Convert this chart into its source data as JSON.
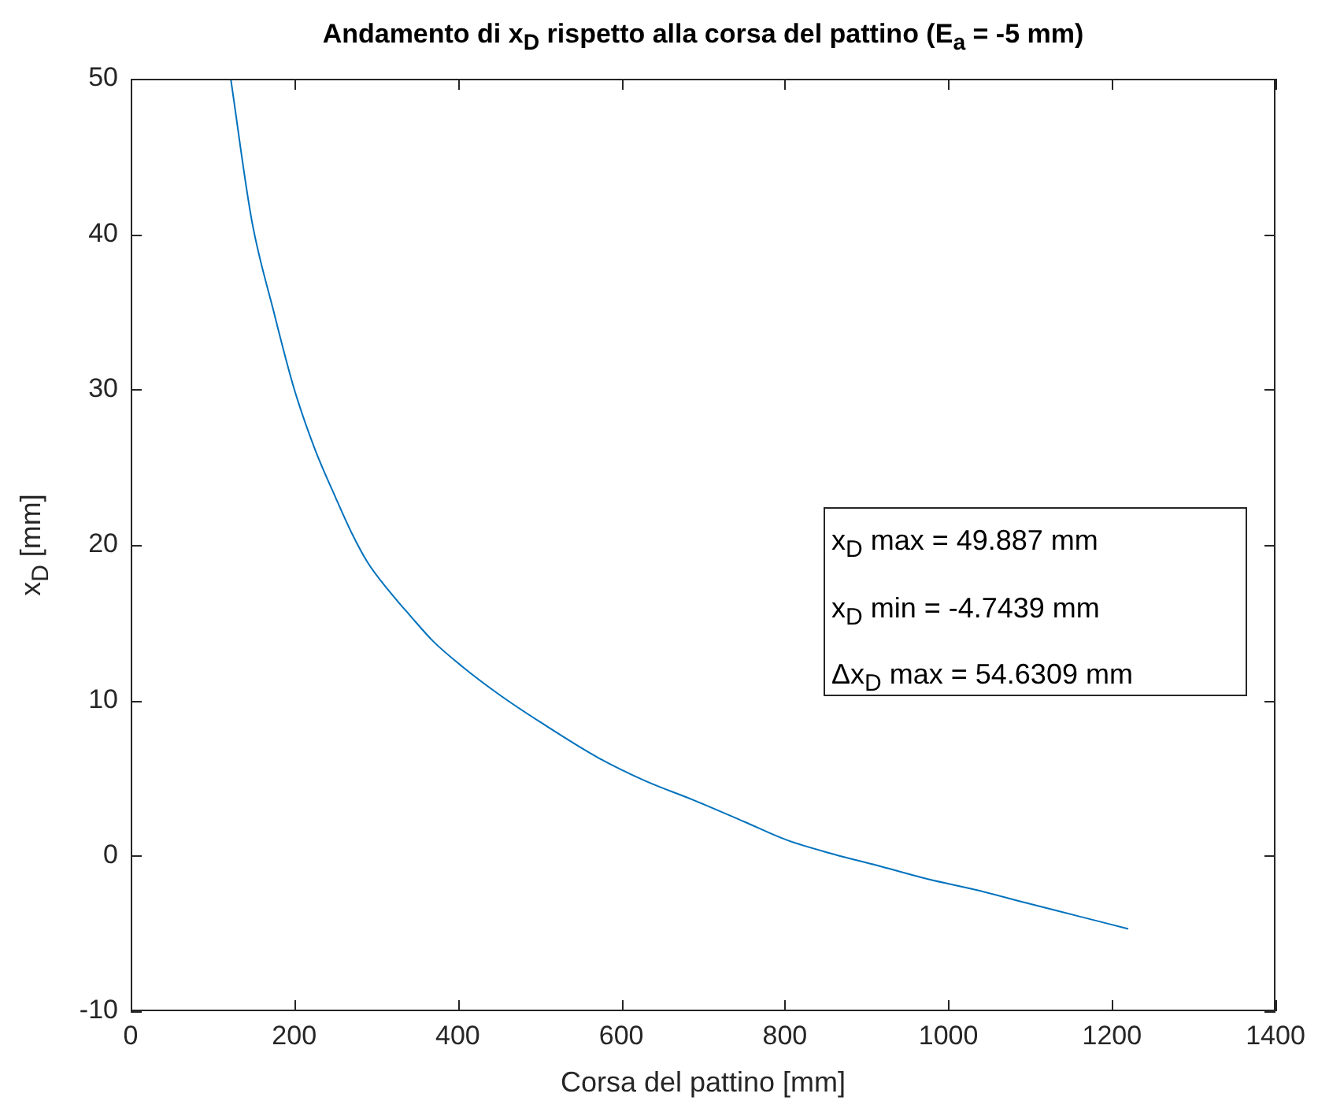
{
  "chart_data": {
    "type": "line",
    "title": "Andamento di x$_{D}$ rispetto alla corsa del pattino (E$_{a}$ = -5 mm)",
    "xlabel": "Corsa del pattino [mm]",
    "ylabel": "x$_{D}$ [mm]",
    "x": [
      122.6,
      148,
      175,
      199.6,
      225,
      251,
      270,
      289.5,
      315,
      341,
      370,
      405,
      450,
      501,
      572,
      630,
      687.5,
      750,
      803,
      860,
      918.5,
      975,
      1034,
      1100,
      1160,
      1220
    ],
    "series": [
      {
        "color": "#0072bd",
        "values": [
          49.9,
          40.9,
          35,
          30.1,
          26.2,
          23.0,
          20.8,
          18.9,
          17.1,
          15.5,
          13.8,
          12.2,
          10.4,
          8.6,
          6.3,
          4.8,
          3.6,
          2.2,
          1.0,
          0.1,
          -0.7,
          -1.5,
          -2.2,
          -3.1,
          -3.9,
          -4.7
        ]
      }
    ],
    "xlim": [
      0,
      1400
    ],
    "xticks": [
      0,
      200,
      400,
      600,
      800,
      1000,
      1200,
      1400
    ],
    "ylim": [
      -10,
      50
    ],
    "yticks": [
      -10,
      0,
      10,
      20,
      30,
      40,
      50
    ],
    "annotations": [
      "x$_{D}$ max = 49.887 mm",
      "x$_{D}$ min = -4.7439 mm",
      "Δx$_{D}$ max = 54.6309 mm"
    ]
  }
}
